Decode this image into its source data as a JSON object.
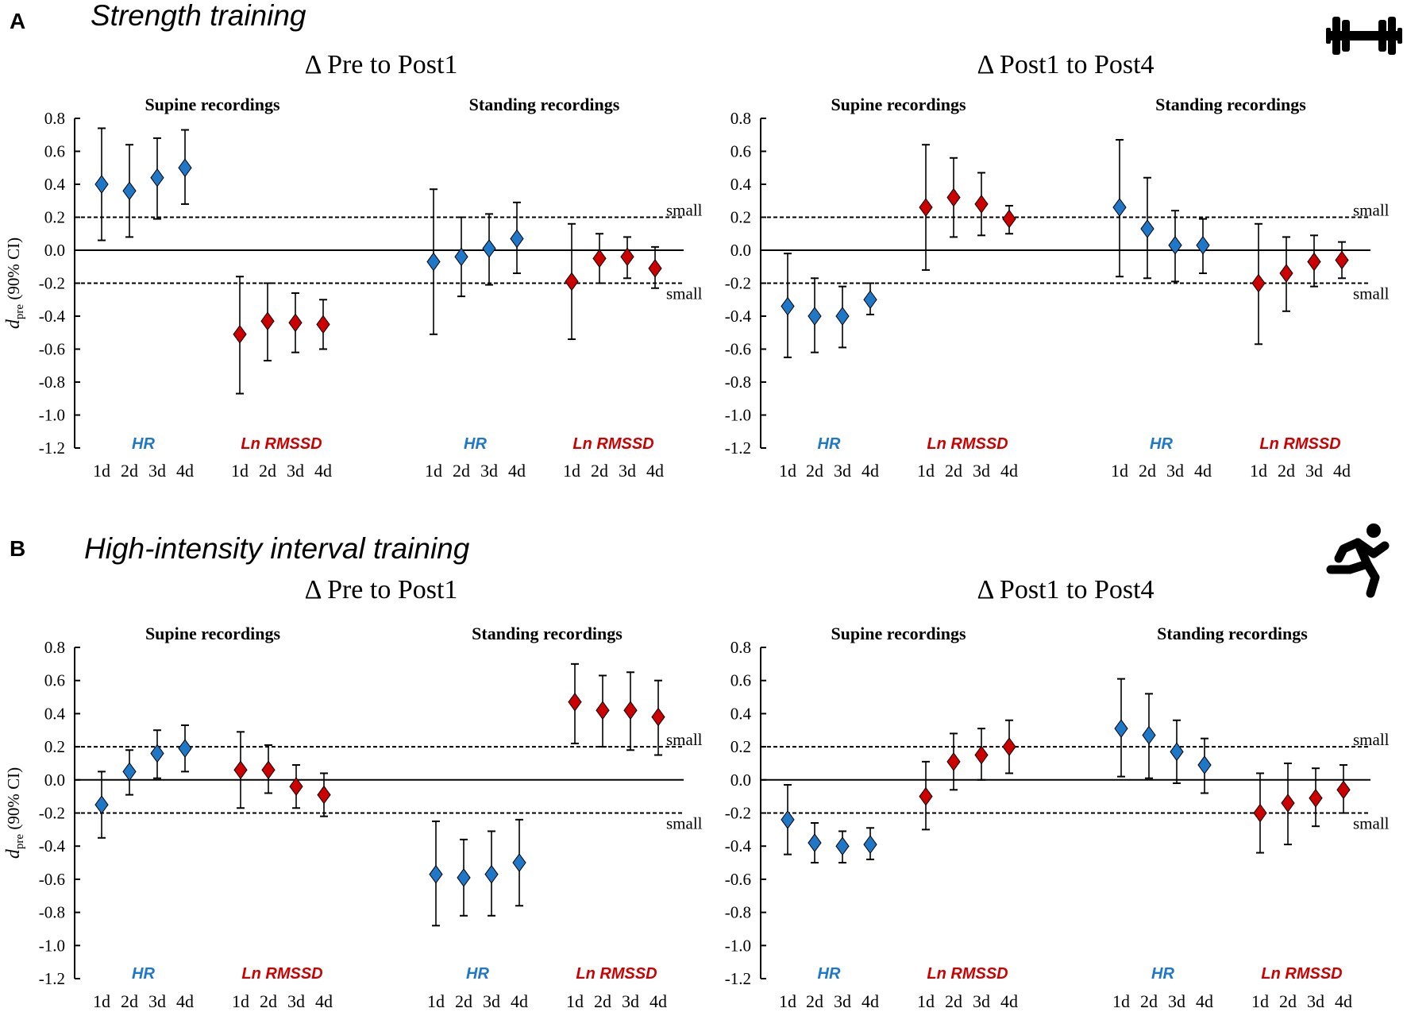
{
  "colors": {
    "hr": "#1f77c8",
    "lnrmssd": "#cc0000"
  },
  "sections": [
    {
      "letter": "A",
      "title": "Strength training",
      "icon": "dumbbell-icon"
    },
    {
      "letter": "B",
      "title": "High-intensity interval training",
      "icon": "runner-icon"
    }
  ],
  "chart_data": [
    {
      "type": "scatter",
      "section": "A",
      "title": "Δ Pre to Post1",
      "ylabel": "d_pre (90% CI)",
      "ylim": [
        -1.2,
        0.8
      ],
      "yticks": [
        "0.8",
        "0.6",
        "0.4",
        "0.2",
        "0.0",
        "-0.2",
        "-0.4",
        "-0.6",
        "-0.8",
        "-1.0",
        "-1.2"
      ],
      "reference_lines": [
        {
          "y": 0.2,
          "label": "small"
        },
        {
          "y": -0.2,
          "label": "small"
        }
      ],
      "groups": [
        {
          "recording": "Supine recordings",
          "measure": "HR",
          "days": [
            "1d",
            "2d",
            "3d",
            "4d"
          ],
          "values": [
            0.4,
            0.36,
            0.44,
            0.5
          ],
          "lower": [
            0.06,
            0.08,
            0.19,
            0.28
          ],
          "upper": [
            0.74,
            0.64,
            0.68,
            0.73
          ]
        },
        {
          "recording": "Supine recordings",
          "measure": "Ln RMSSD",
          "days": [
            "1d",
            "2d",
            "3d",
            "4d"
          ],
          "values": [
            -0.51,
            -0.43,
            -0.44,
            -0.45
          ],
          "lower": [
            -0.87,
            -0.67,
            -0.62,
            -0.6
          ],
          "upper": [
            -0.16,
            -0.2,
            -0.26,
            -0.3
          ]
        },
        {
          "recording": "Standing recordings",
          "measure": "HR",
          "days": [
            "1d",
            "2d",
            "3d",
            "4d"
          ],
          "values": [
            -0.07,
            -0.04,
            0.01,
            0.07
          ],
          "lower": [
            -0.51,
            -0.28,
            -0.21,
            -0.14
          ],
          "upper": [
            0.37,
            0.2,
            0.22,
            0.29
          ]
        },
        {
          "recording": "Standing recordings",
          "measure": "Ln RMSSD",
          "days": [
            "1d",
            "2d",
            "3d",
            "4d"
          ],
          "values": [
            -0.19,
            -0.05,
            -0.04,
            -0.11
          ],
          "lower": [
            -0.54,
            -0.2,
            -0.17,
            -0.23
          ],
          "upper": [
            0.16,
            0.1,
            0.08,
            0.02
          ]
        }
      ]
    },
    {
      "type": "scatter",
      "section": "A",
      "title": "Δ Post1 to Post4",
      "ylabel": "",
      "ylim": [
        -1.2,
        0.8
      ],
      "yticks": [
        "0.8",
        "0.6",
        "0.4",
        "0.2",
        "0.0",
        "-0.2",
        "-0.4",
        "-0.6",
        "-0.8",
        "-1.0",
        "-1.2"
      ],
      "reference_lines": [
        {
          "y": 0.2,
          "label": "small"
        },
        {
          "y": -0.2,
          "label": "small"
        }
      ],
      "groups": [
        {
          "recording": "Supine recordings",
          "measure": "HR",
          "days": [
            "1d",
            "2d",
            "3d",
            "4d"
          ],
          "values": [
            -0.34,
            -0.4,
            -0.4,
            -0.3
          ],
          "lower": [
            -0.65,
            -0.62,
            -0.59,
            -0.39
          ],
          "upper": [
            -0.02,
            -0.17,
            -0.22,
            -0.2
          ]
        },
        {
          "recording": "Supine recordings",
          "measure": "Ln RMSSD",
          "days": [
            "1d",
            "2d",
            "3d",
            "4d"
          ],
          "values": [
            0.26,
            0.32,
            0.28,
            0.19
          ],
          "lower": [
            -0.12,
            0.08,
            0.09,
            0.1
          ],
          "upper": [
            0.64,
            0.56,
            0.47,
            0.27
          ]
        },
        {
          "recording": "Standing recordings",
          "measure": "HR",
          "days": [
            "1d",
            "2d",
            "3d",
            "4d"
          ],
          "values": [
            0.26,
            0.13,
            0.03,
            0.03
          ],
          "lower": [
            -0.16,
            -0.17,
            -0.19,
            -0.14
          ],
          "upper": [
            0.67,
            0.44,
            0.24,
            0.19
          ]
        },
        {
          "recording": "Standing recordings",
          "measure": "Ln RMSSD",
          "days": [
            "1d",
            "2d",
            "3d",
            "4d"
          ],
          "values": [
            -0.2,
            -0.14,
            -0.07,
            -0.06
          ],
          "lower": [
            -0.57,
            -0.37,
            -0.22,
            -0.17
          ],
          "upper": [
            0.16,
            0.08,
            0.09,
            0.05
          ]
        }
      ]
    },
    {
      "type": "scatter",
      "section": "B",
      "title": "Δ Pre to Post1",
      "ylabel": "d_pre (90% CI)",
      "ylim": [
        -1.2,
        0.8
      ],
      "yticks": [
        "0.8",
        "0.6",
        "0.4",
        "0.2",
        "0.0",
        "-0.2",
        "-0.4",
        "-0.6",
        "-0.8",
        "-1.0",
        "-1.2"
      ],
      "reference_lines": [
        {
          "y": 0.2,
          "label": "small"
        },
        {
          "y": -0.2,
          "label": "small"
        }
      ],
      "groups": [
        {
          "recording": "Supine recordings",
          "measure": "HR",
          "days": [
            "1d",
            "2d",
            "3d",
            "4d"
          ],
          "values": [
            -0.15,
            0.05,
            0.16,
            0.19
          ],
          "lower": [
            -0.35,
            -0.09,
            0.01,
            0.05
          ],
          "upper": [
            0.05,
            0.18,
            0.3,
            0.33
          ]
        },
        {
          "recording": "Supine recordings",
          "measure": "Ln RMSSD",
          "days": [
            "1d",
            "2d",
            "3d",
            "4d"
          ],
          "values": [
            0.06,
            0.06,
            -0.04,
            -0.09
          ],
          "lower": [
            -0.17,
            -0.08,
            -0.17,
            -0.22
          ],
          "upper": [
            0.29,
            0.21,
            0.09,
            0.04
          ]
        },
        {
          "recording": "Standing recordings",
          "measure": "HR",
          "days": [
            "1d",
            "2d",
            "3d",
            "4d"
          ],
          "values": [
            -0.57,
            -0.59,
            -0.57,
            -0.5
          ],
          "lower": [
            -0.88,
            -0.82,
            -0.82,
            -0.76
          ],
          "upper": [
            -0.25,
            -0.36,
            -0.31,
            -0.24
          ]
        },
        {
          "recording": "Standing recordings",
          "measure": "Ln RMSSD",
          "days": [
            "1d",
            "2d",
            "3d",
            "4d"
          ],
          "values": [
            0.47,
            0.42,
            0.42,
            0.38
          ],
          "lower": [
            0.22,
            0.2,
            0.18,
            0.15
          ],
          "upper": [
            0.7,
            0.63,
            0.65,
            0.6
          ]
        }
      ]
    },
    {
      "type": "scatter",
      "section": "B",
      "title": "Δ Post1 to Post4",
      "ylabel": "",
      "ylim": [
        -1.2,
        0.8
      ],
      "yticks": [
        "0.8",
        "0.6",
        "0.4",
        "0.2",
        "0.0",
        "-0.2",
        "-0.4",
        "-0.6",
        "-0.8",
        "-1.0",
        "-1.2"
      ],
      "reference_lines": [
        {
          "y": 0.2,
          "label": "small"
        },
        {
          "y": -0.2,
          "label": "small"
        }
      ],
      "groups": [
        {
          "recording": "Supine recordings",
          "measure": "HR",
          "days": [
            "1d",
            "2d",
            "3d",
            "4d"
          ],
          "values": [
            -0.24,
            -0.38,
            -0.4,
            -0.39
          ],
          "lower": [
            -0.45,
            -0.5,
            -0.5,
            -0.48
          ],
          "upper": [
            -0.03,
            -0.26,
            -0.31,
            -0.29
          ]
        },
        {
          "recording": "Supine recordings",
          "measure": "Ln RMSSD",
          "days": [
            "1d",
            "2d",
            "3d",
            "4d"
          ],
          "values": [
            -0.1,
            0.11,
            0.15,
            0.2
          ],
          "lower": [
            -0.3,
            -0.06,
            0.0,
            0.04
          ],
          "upper": [
            0.11,
            0.28,
            0.31,
            0.36
          ]
        },
        {
          "recording": "Standing recordings",
          "measure": "HR",
          "days": [
            "1d",
            "2d",
            "3d",
            "4d"
          ],
          "values": [
            0.31,
            0.27,
            0.17,
            0.09
          ],
          "lower": [
            0.02,
            0.01,
            -0.02,
            -0.08
          ],
          "upper": [
            0.61,
            0.52,
            0.36,
            0.25
          ]
        },
        {
          "recording": "Standing recordings",
          "measure": "Ln RMSSD",
          "days": [
            "1d",
            "2d",
            "3d",
            "4d"
          ],
          "values": [
            -0.2,
            -0.14,
            -0.11,
            -0.06
          ],
          "lower": [
            -0.44,
            -0.39,
            -0.28,
            -0.2
          ],
          "upper": [
            0.04,
            0.1,
            0.07,
            0.09
          ]
        }
      ]
    }
  ]
}
